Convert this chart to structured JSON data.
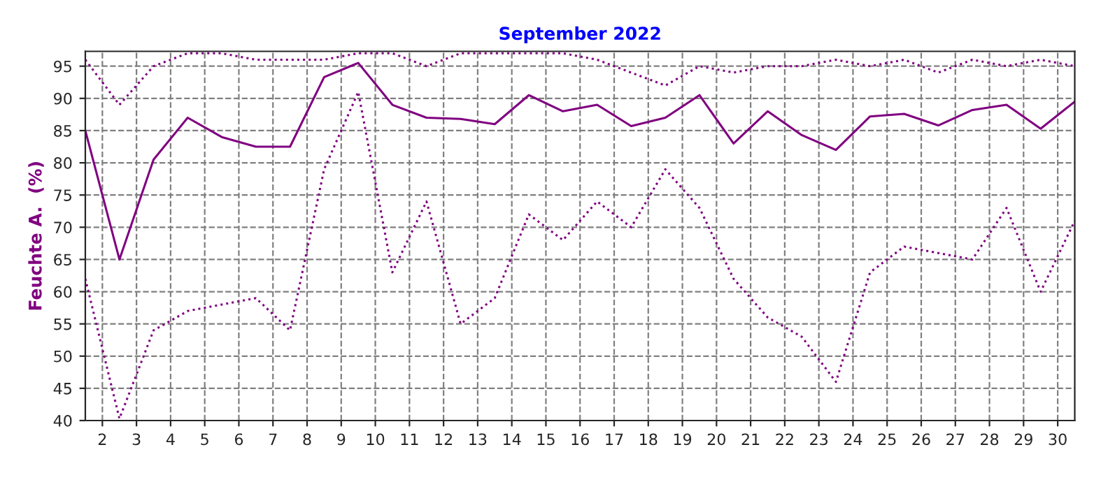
{
  "chart_data": {
    "type": "line",
    "title": "September 2022",
    "ylabel": "Feuchte A.  (%)",
    "x": [
      1.5,
      2.5,
      3.5,
      4.5,
      5.5,
      6.5,
      7.5,
      8.5,
      9.5,
      10.5,
      11.5,
      12.5,
      13.5,
      14.5,
      15.5,
      16.5,
      17.5,
      18.5,
      19.5,
      20.5,
      21.5,
      22.5,
      23.5,
      24.5,
      25.5,
      26.5,
      27.5,
      28.5,
      29.5,
      30.5
    ],
    "series": [
      {
        "color": "#800080",
        "line_style": "dotted",
        "values": [
          96,
          89,
          95,
          97,
          97,
          96,
          96,
          96,
          97,
          97,
          95,
          97,
          97,
          97,
          97,
          96,
          94,
          92,
          95,
          94,
          95,
          95,
          96,
          95,
          96,
          94,
          96,
          95,
          96,
          95
        ]
      },
      {
        "color": "#800080",
        "line_style": "solid",
        "values": [
          85,
          65,
          80.5,
          87,
          84,
          82.5,
          82.5,
          93.3,
          95.5,
          89,
          87,
          86.8,
          86,
          90.5,
          88,
          89,
          85.7,
          87,
          90.5,
          83,
          88,
          84.3,
          82,
          87.2,
          87.6,
          85.8,
          88.2,
          89,
          85.3,
          89.5
        ]
      },
      {
        "color": "#800080",
        "line_style": "dotted",
        "values": [
          62,
          40.3,
          54,
          57,
          58,
          59,
          54,
          79,
          91,
          63,
          74,
          55,
          59,
          72,
          68,
          74,
          70,
          79,
          73,
          62,
          56,
          53,
          46,
          63,
          67,
          66,
          65,
          73,
          60,
          71
        ]
      }
    ],
    "xlim": [
      1.5,
      30.5
    ],
    "xticks": [
      2,
      3,
      4,
      5,
      6,
      7,
      8,
      9,
      10,
      11,
      12,
      13,
      14,
      15,
      16,
      17,
      18,
      19,
      20,
      21,
      22,
      23,
      24,
      25,
      26,
      27,
      28,
      29,
      30
    ],
    "ylim": [
      40,
      97.3
    ],
    "yticks": [
      40,
      45,
      50,
      55,
      60,
      65,
      70,
      75,
      80,
      85,
      90,
      95
    ],
    "grid": true,
    "marker": "none"
  }
}
